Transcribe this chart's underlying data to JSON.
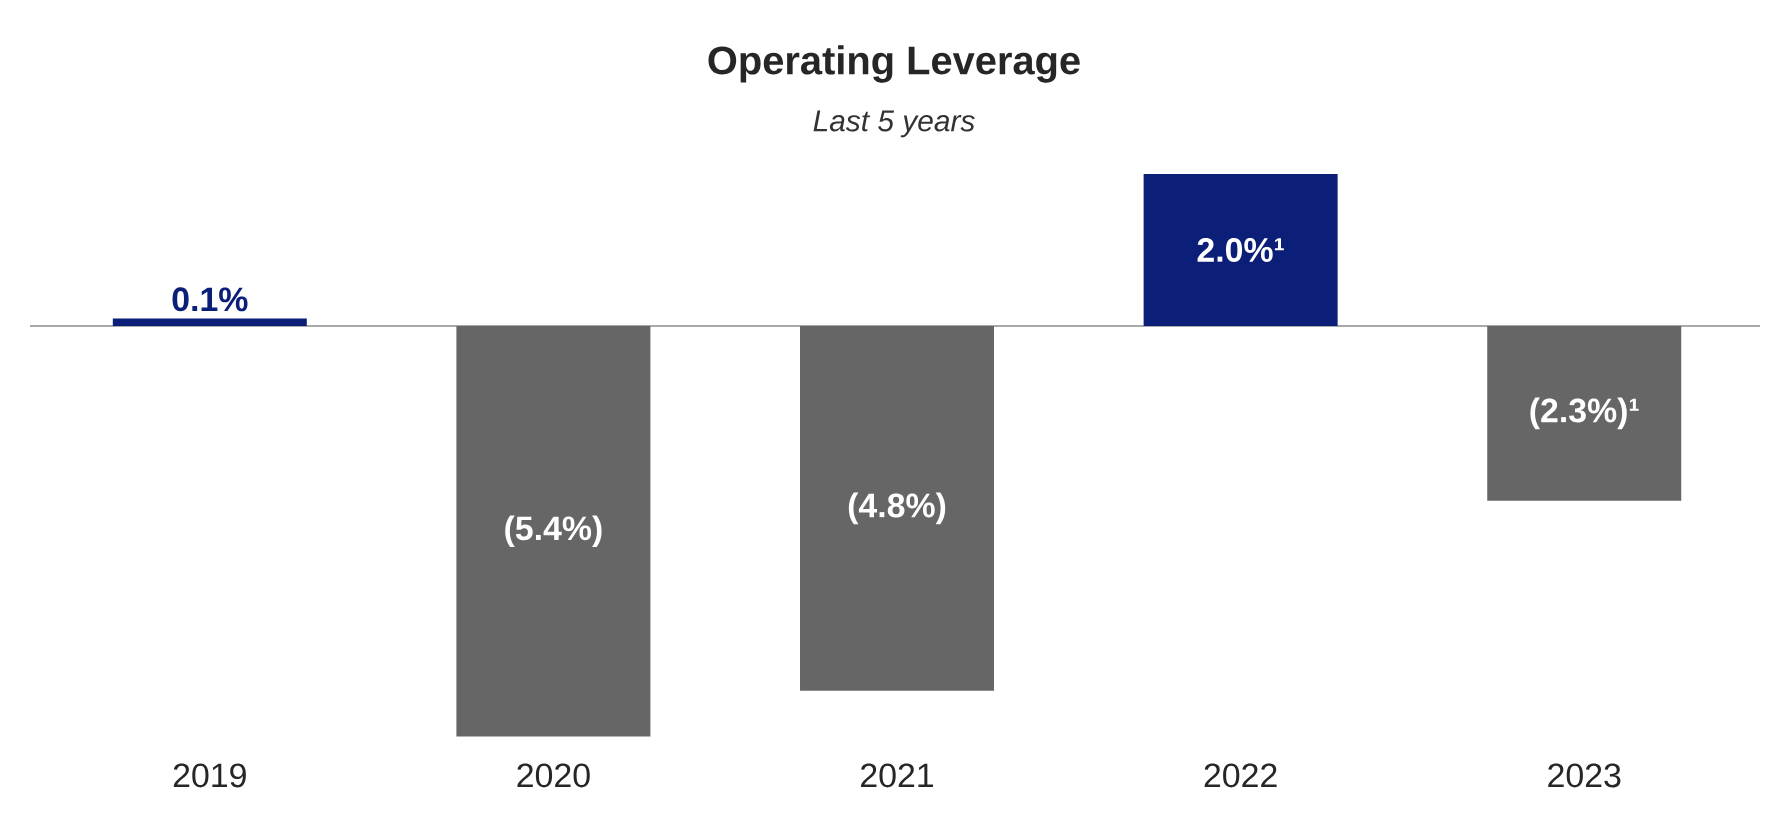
{
  "chart_data": {
    "type": "bar",
    "title": "Operating Leverage",
    "subtitle": "Last 5 years",
    "categories": [
      "2019",
      "2020",
      "2021",
      "2022",
      "2023"
    ],
    "values": [
      0.1,
      -5.4,
      -4.8,
      2.0,
      -2.3
    ],
    "colors": [
      "#0b1f78",
      "#666666",
      "#666666",
      "#0b1f78",
      "#666666"
    ],
    "value_labels": [
      "0.1%",
      "(5.4%)",
      "(4.8%)",
      "2.0%¹",
      "(2.3%)¹"
    ]
  }
}
